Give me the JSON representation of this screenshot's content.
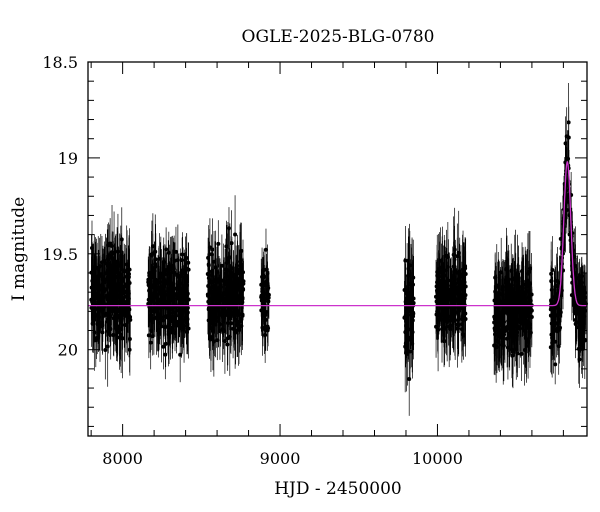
{
  "chart_data": {
    "type": "scatter",
    "title": "OGLE-2025-BLG-0780",
    "xlabel": "HJD - 2450000",
    "ylabel": "I magnitude",
    "xlim": [
      7780,
      10950
    ],
    "ylim": [
      20.45,
      18.5
    ],
    "y_inverted": true,
    "grid": false,
    "x_ticks": [
      8000,
      9000,
      10000
    ],
    "x_tick_labels": [
      "8000",
      "9000",
      "10000"
    ],
    "y_ticks": [
      18.5,
      19,
      19.5,
      20
    ],
    "y_tick_labels": [
      "18.5",
      "19",
      "19.5",
      "20"
    ],
    "colors": {
      "points": "#000000",
      "model": "#cc33cc"
    },
    "baseline_mag": 19.77,
    "observing_seasons": [
      {
        "start": 7800,
        "end": 8050,
        "mean_mag": 19.72,
        "scatter": 0.17,
        "error": 0.17
      },
      {
        "start": 8160,
        "end": 8420,
        "mean_mag": 19.72,
        "scatter": 0.15,
        "error": 0.15
      },
      {
        "start": 8540,
        "end": 8770,
        "mean_mag": 19.72,
        "scatter": 0.16,
        "error": 0.16
      },
      {
        "start": 8880,
        "end": 8930,
        "mean_mag": 19.75,
        "scatter": 0.12,
        "error": 0.13
      },
      {
        "start": 9790,
        "end": 9850,
        "mean_mag": 19.78,
        "scatter": 0.19,
        "error": 0.2
      },
      {
        "start": 9990,
        "end": 10180,
        "mean_mag": 19.72,
        "scatter": 0.14,
        "error": 0.17
      },
      {
        "start": 10360,
        "end": 10600,
        "mean_mag": 19.8,
        "scatter": 0.14,
        "error": 0.18
      },
      {
        "start": 10720,
        "end": 10945,
        "mean_mag": 19.8,
        "scatter": 0.14,
        "error": 0.16
      }
    ],
    "model": {
      "baseline": 19.77,
      "peak_time": 10825,
      "peak_mag": 19.02,
      "width": 22
    }
  }
}
